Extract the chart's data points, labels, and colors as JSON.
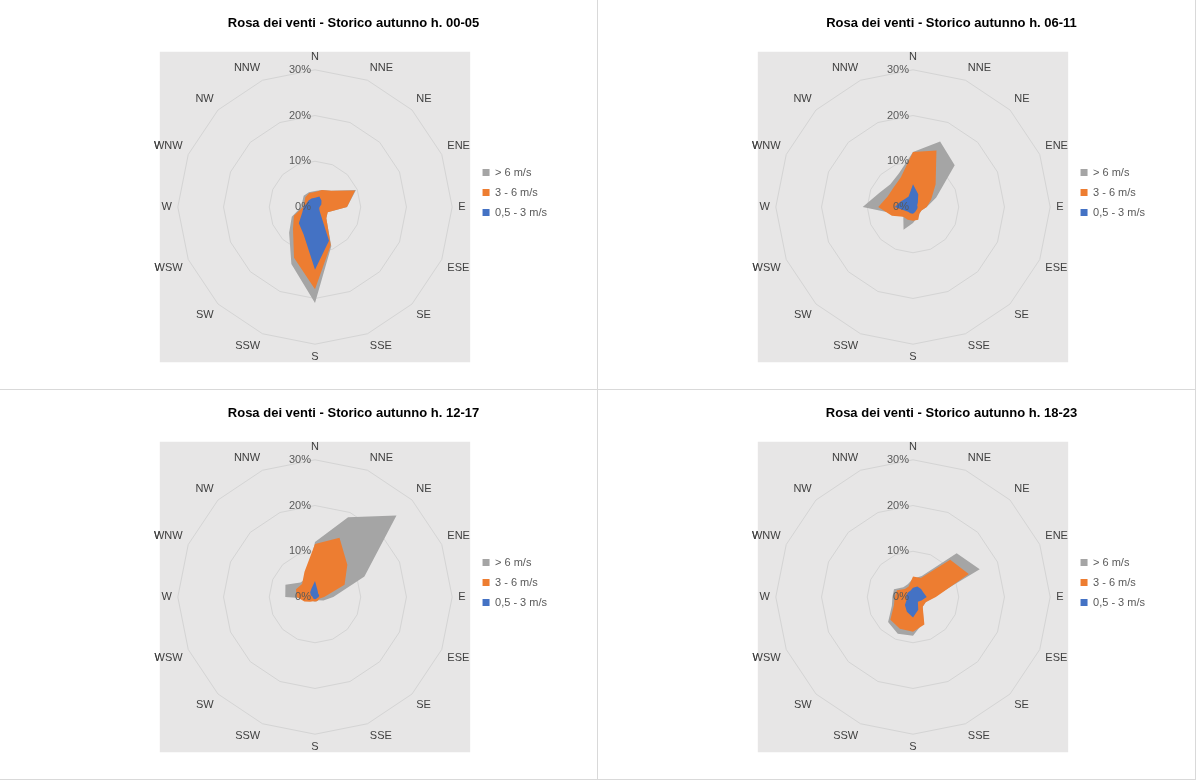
{
  "chart_data": [
    {
      "type": "radar",
      "title": "Rosa dei venti - Storico autunno h. 00-05",
      "categories": [
        "N",
        "NNE",
        "NE",
        "ENE",
        "E",
        "ESE",
        "SE",
        "SSE",
        "S",
        "SSW",
        "SW",
        "WSW",
        "W",
        "WNW",
        "NW",
        "NNW"
      ],
      "ylim": [
        0,
        30
      ],
      "yticks": [
        {
          "value": 0,
          "label": "0%"
        },
        {
          "value": 10,
          "label": "10%"
        },
        {
          "value": 20,
          "label": "20%"
        },
        {
          "value": 30,
          "label": "30%"
        }
      ],
      "grid": true,
      "legend": "right",
      "series": [
        {
          "name": "> 6 m/s",
          "color": "#a5a5a5",
          "values": [
            3.5,
            4,
            5,
            9.7,
            7,
            3,
            3.5,
            9.3,
            21,
            13.5,
            8,
            5.5,
            3,
            3,
            3.5,
            3.5
          ]
        },
        {
          "name": "3 - 6 m/s",
          "color": "#ed7d31",
          "values": [
            3.3,
            4,
            5,
            9.5,
            7,
            3,
            3.5,
            9,
            18,
            12,
            6.8,
            5,
            2.6,
            2.5,
            3,
            3.3
          ]
        },
        {
          "name": "0,5 - 3 m/s",
          "color": "#4472c4",
          "values": [
            2,
            2.5,
            2,
            1.5,
            1,
            1,
            1.5,
            8,
            13.7,
            6.5,
            5,
            3,
            2.5,
            2,
            2,
            2
          ]
        }
      ]
    },
    {
      "type": "radar",
      "title": "Rosa dei venti - Storico autunno h. 06-11",
      "categories": [
        "N",
        "NNE",
        "NE",
        "ENE",
        "E",
        "ESE",
        "SE",
        "SSE",
        "S",
        "SSW",
        "SW",
        "WSW",
        "W",
        "WNW",
        "NW",
        "NNW"
      ],
      "ylim": [
        0,
        30
      ],
      "yticks": [
        {
          "value": 0,
          "label": "0%"
        },
        {
          "value": 10,
          "label": "10%"
        },
        {
          "value": 20,
          "label": "20%"
        },
        {
          "value": 30,
          "label": "30%"
        }
      ],
      "grid": true,
      "legend": "right",
      "series": [
        {
          "name": "> 6 m/s",
          "color": "#a5a5a5",
          "values": [
            12,
            15.5,
            12.9,
            5.5,
            3,
            2,
            2,
            2.5,
            3.5,
            5.4,
            3,
            4,
            11,
            8,
            7,
            8
          ]
        },
        {
          "name": "3 - 6 m/s",
          "color": "#ed7d31",
          "values": [
            12,
            13.4,
            7,
            4.3,
            3,
            2,
            2,
            3,
            3,
            3,
            3,
            5,
            7.6,
            6,
            6,
            7
          ]
        },
        {
          "name": "0,5 - 3 m/s",
          "color": "#4472c4",
          "values": [
            5,
            3,
            1.5,
            1,
            1,
            1,
            1,
            1.2,
            1.5,
            1.5,
            1.5,
            2,
            4,
            3,
            2.5,
            2.5
          ]
        }
      ]
    },
    {
      "type": "radar",
      "title": "Rosa dei venti - Storico autunno h. 12-17",
      "categories": [
        "N",
        "NNE",
        "NE",
        "ENE",
        "E",
        "ESE",
        "SE",
        "SSE",
        "S",
        "SSW",
        "SW",
        "WSW",
        "W",
        "WNW",
        "NW",
        "NNW"
      ],
      "ylim": [
        0,
        30
      ],
      "yticks": [
        {
          "value": 0,
          "label": "0%"
        },
        {
          "value": 10,
          "label": "10%"
        },
        {
          "value": 20,
          "label": "20%"
        },
        {
          "value": 30,
          "label": "30%"
        }
      ],
      "grid": true,
      "legend": "right",
      "series": [
        {
          "name": "> 6 m/s",
          "color": "#a5a5a5",
          "values": [
            12,
            18.9,
            25.2,
            11.7,
            4,
            2,
            1,
            1,
            1,
            1,
            1,
            1,
            6.5,
            7,
            4.5,
            4.5
          ]
        },
        {
          "name": "3 - 6 m/s",
          "color": "#ed7d31",
          "values": [
            11.6,
            14,
            10,
            7,
            2,
            1,
            1,
            1,
            1,
            1,
            1.5,
            2.5,
            4,
            4.5,
            4,
            6
          ]
        },
        {
          "name": "0,5 - 3 m/s",
          "color": "#4472c4",
          "values": [
            3.5,
            1.5,
            1,
            1,
            0.8,
            0.5,
            0.5,
            0.5,
            0.5,
            0.5,
            0.5,
            0.5,
            0.5,
            1,
            1.5,
            2
          ]
        }
      ]
    },
    {
      "type": "radar",
      "title": "Rosa dei venti - Storico autunno h. 18-23",
      "categories": [
        "N",
        "NNE",
        "NE",
        "ENE",
        "E",
        "ESE",
        "SE",
        "SSE",
        "S",
        "SSW",
        "SW",
        "WSW",
        "W",
        "WNW",
        "NW",
        "NNW"
      ],
      "ylim": [
        0,
        30
      ],
      "yticks": [
        {
          "value": 0,
          "label": "0%"
        },
        {
          "value": 10,
          "label": "10%"
        },
        {
          "value": 20,
          "label": "20%"
        },
        {
          "value": 30,
          "label": "30%"
        }
      ],
      "grid": true,
      "legend": "right",
      "series": [
        {
          "name": "> 6 m/s",
          "color": "#a5a5a5",
          "values": [
            4,
            5,
            13.5,
            15.8,
            4.5,
            3,
            3,
            6,
            8.5,
            8.7,
            7.7,
            5,
            4.5,
            4.5,
            3,
            3
          ]
        },
        {
          "name": "3 - 6 m/s",
          "color": "#ed7d31",
          "values": [
            4.5,
            4.5,
            11.5,
            13.2,
            5,
            3,
            3,
            6.5,
            7.6,
            7.5,
            7,
            4.5,
            4,
            3.8,
            2.5,
            2.5
          ]
        },
        {
          "name": "0,5 - 3 m/s",
          "color": "#4472c4",
          "values": [
            2,
            2.5,
            2.5,
            2.5,
            3,
            2,
            1.5,
            3,
            4.5,
            3.5,
            2.5,
            1.5,
            1.5,
            1.5,
            1.5,
            1.5
          ]
        }
      ]
    }
  ]
}
